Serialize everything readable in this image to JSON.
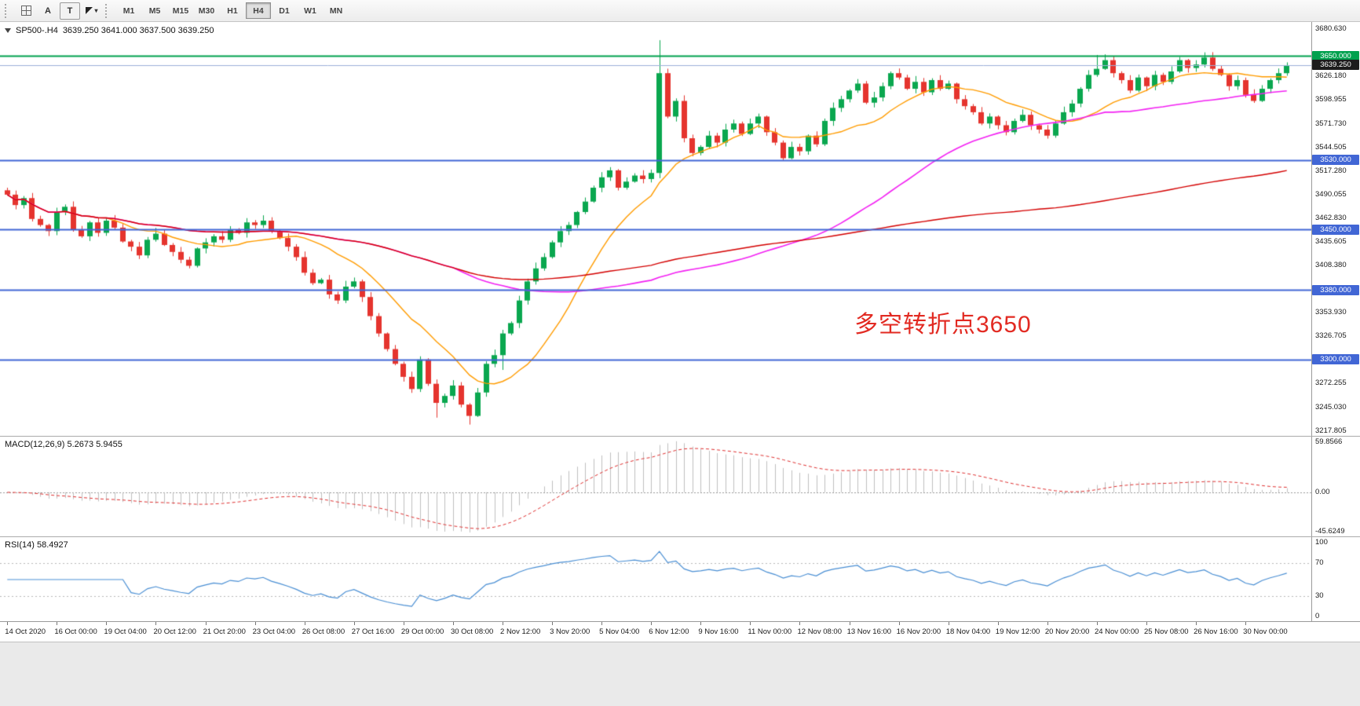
{
  "toolbar": {
    "tools": [
      {
        "name": "windows-grid-button",
        "type": "grid-icon"
      },
      {
        "name": "text-a-tool-button",
        "label": "A"
      },
      {
        "name": "text-box-tool-button",
        "label": "T",
        "boxed": true
      },
      {
        "name": "shapes-dropdown-button",
        "type": "cursor-icon",
        "caret": "▾"
      }
    ],
    "timeframes": [
      "M1",
      "M5",
      "M15",
      "M30",
      "H1",
      "H4",
      "D1",
      "W1",
      "MN"
    ],
    "active_timeframe": "H4"
  },
  "chart": {
    "symbol_title": "SP500-.H4",
    "ohlc_text": "3639.250 3641.000 3637.500 3639.250",
    "annotation": {
      "text": "多空转折点3650",
      "color": "#e22a22"
    }
  },
  "chart_data": {
    "type": "candlestick",
    "symbol": "SP500-",
    "timeframe": "H4",
    "colors": {
      "bull": "#0aa74f",
      "bear": "#e5342e",
      "rsi": "#4a8fd4",
      "macd_hist": "#c0c0c0",
      "macd_signal": "#e03030",
      "level_blue": "#4166d5",
      "level_green": "#00a14e",
      "bid_line": "#9bb0d9"
    },
    "y_range": [
      3212,
      3689
    ],
    "first_open": 3495,
    "closes": [
      3490,
      3478,
      3486,
      3462,
      3455,
      3448,
      3470,
      3476,
      3450,
      3442,
      3458,
      3446,
      3460,
      3452,
      3436,
      3430,
      3420,
      3438,
      3445,
      3432,
      3424,
      3415,
      3408,
      3428,
      3435,
      3442,
      3438,
      3450,
      3446,
      3458,
      3455,
      3460,
      3448,
      3440,
      3430,
      3418,
      3400,
      3388,
      3392,
      3375,
      3368,
      3384,
      3390,
      3372,
      3350,
      3330,
      3312,
      3295,
      3280,
      3266,
      3300,
      3272,
      3250,
      3258,
      3270,
      3248,
      3235,
      3262,
      3295,
      3305,
      3330,
      3342,
      3368,
      3390,
      3405,
      3418,
      3435,
      3448,
      3455,
      3470,
      3482,
      3498,
      3510,
      3518,
      3498,
      3505,
      3512,
      3508,
      3515,
      3630,
      3580,
      3598,
      3555,
      3538,
      3545,
      3558,
      3550,
      3565,
      3572,
      3560,
      3572,
      3580,
      3562,
      3550,
      3532,
      3545,
      3540,
      3558,
      3548,
      3575,
      3590,
      3600,
      3610,
      3618,
      3596,
      3602,
      3615,
      3630,
      3625,
      3612,
      3620,
      3608,
      3622,
      3612,
      3618,
      3600,
      3592,
      3585,
      3572,
      3580,
      3570,
      3562,
      3575,
      3582,
      3570,
      3565,
      3558,
      3572,
      3585,
      3595,
      3612,
      3628,
      3635,
      3645,
      3630,
      3622,
      3610,
      3625,
      3615,
      3628,
      3620,
      3632,
      3645,
      3636,
      3640,
      3648,
      3635,
      3628,
      3615,
      3622,
      3605,
      3598,
      3612,
      3622,
      3630,
      3639.25
    ],
    "wick_overrides": {
      "0": {
        "high": 3498
      },
      "52": {
        "low": 3233
      },
      "56": {
        "low": 3225
      },
      "60": {
        "low": 3288
      },
      "79": {
        "high": 3668,
        "low": 3509
      },
      "132": {
        "high": 3651
      },
      "145": {
        "high": 3654
      }
    },
    "ma": [
      {
        "period": 13,
        "color": "#ff9c00",
        "width": 1.4
      },
      {
        "period": 55,
        "color": "#f321f3",
        "width": 1.6
      },
      {
        "period": 120,
        "color": "#d40000",
        "width": 1.4
      }
    ],
    "hlines": [
      {
        "price": 3650.0,
        "color": "#00a14e",
        "width": 2,
        "badge": "3650.000"
      },
      {
        "price": 3639.25,
        "color": "#9bb0d9",
        "width": 1,
        "badge": "3639.250",
        "badge_bg": "#1c1c1c"
      },
      {
        "price": 3530.0,
        "color": "#4166d5",
        "width": 2,
        "badge": "3530.000"
      },
      {
        "price": 3450.0,
        "color": "#4166d5",
        "width": 2,
        "badge": "3450.000"
      },
      {
        "price": 3380.0,
        "color": "#4166d5",
        "width": 2,
        "badge": "3380.000"
      },
      {
        "price": 3300.0,
        "color": "#4166d5",
        "width": 2,
        "badge": "3300.000"
      }
    ],
    "price_ticks": [
      {
        "p": 3680.63,
        "t": "3680.630"
      },
      {
        "p": 3626.18,
        "t": "3626.180"
      },
      {
        "p": 3598.955,
        "t": "3598.955"
      },
      {
        "p": 3571.73,
        "t": "3571.730"
      },
      {
        "p": 3544.505,
        "t": "3544.505"
      },
      {
        "p": 3517.28,
        "t": "3517.280"
      },
      {
        "p": 3490.055,
        "t": "3490.055"
      },
      {
        "p": 3462.83,
        "t": "3462.830"
      },
      {
        "p": 3435.605,
        "t": "3435.605"
      },
      {
        "p": 3408.38,
        "t": "3408.380"
      },
      {
        "p": 3353.93,
        "t": "3353.930"
      },
      {
        "p": 3326.705,
        "t": "3326.705"
      },
      {
        "p": 3272.255,
        "t": "3272.255"
      },
      {
        "p": 3245.03,
        "t": "3245.030"
      },
      {
        "p": 3217.805,
        "t": "3217.805"
      }
    ],
    "macd": {
      "title": "MACD(12,26,9) 5.2673 5.9455",
      "fast": 12,
      "slow": 26,
      "signal": 9,
      "range": [
        -48,
        62
      ],
      "ticks": [
        {
          "v": 59.8566,
          "t": "59.8566"
        },
        {
          "v": 0,
          "t": "0.00"
        },
        {
          "v": -45.6249,
          "t": "-45.6249"
        }
      ]
    },
    "rsi": {
      "title": "RSI(14) 58.4927",
      "period": 14,
      "levels": [
        70,
        30
      ],
      "ticks": [
        {
          "v": 100,
          "t": "100"
        },
        {
          "v": 70,
          "t": "70"
        },
        {
          "v": 30,
          "t": "30"
        },
        {
          "v": 0,
          "t": "0"
        }
      ]
    },
    "label_step": 6,
    "time_labels": [
      "14 Oct 2020",
      "16 Oct 00:00",
      "19 Oct 04:00",
      "20 Oct 12:00",
      "21 Oct 20:00",
      "23 Oct 04:00",
      "26 Oct 08:00",
      "27 Oct 16:00",
      "29 Oct 00:00",
      "30 Oct 08:00",
      "2 Nov 12:00",
      "3 Nov 20:00",
      "5 Nov 04:00",
      "6 Nov 12:00",
      "9 Nov 16:00",
      "11 Nov 00:00",
      "12 Nov 08:00",
      "13 Nov 16:00",
      "16 Nov 20:00",
      "18 Nov 04:00",
      "19 Nov 12:00",
      "20 Nov 20:00",
      "24 Nov 00:00",
      "25 Nov 08:00",
      "26 Nov 16:00",
      "30 Nov 00:00"
    ]
  }
}
